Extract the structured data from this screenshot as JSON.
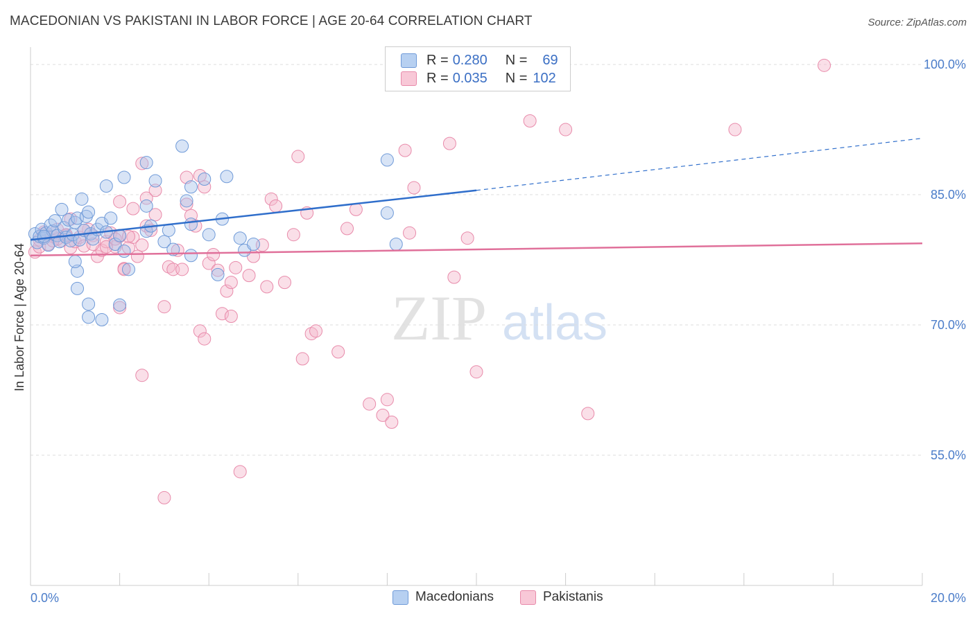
{
  "title": "MACEDONIAN VS PAKISTANI IN LABOR FORCE | AGE 20-64 CORRELATION CHART",
  "source": "Source: ZipAtlas.com",
  "watermark": {
    "zip": "ZIP",
    "atlas": "atlas"
  },
  "colors": {
    "blue_fill": "#a9c4ec",
    "blue_stroke": "#6f9ad8",
    "blue_line": "#2f6ecb",
    "pink_fill": "#f5b8cb",
    "pink_stroke": "#e88aaa",
    "pink_line": "#e0709a",
    "tick_label": "#4a7cc9",
    "grid": "#dddddd"
  },
  "legend": {
    "rows": [
      {
        "r_label": "R =",
        "r_value": "0.280",
        "n_label": "N =",
        "n_value": "69",
        "series": "Macedonians"
      },
      {
        "r_label": "R =",
        "r_value": "0.035",
        "n_label": "N =",
        "n_value": "102",
        "series": "Pakistanis"
      }
    ]
  },
  "bottom_legend": [
    "Macedonians",
    "Pakistanis"
  ],
  "chart_data": {
    "type": "scatter",
    "title": "MACEDONIAN VS PAKISTANI IN LABOR FORCE | AGE 20-64 CORRELATION CHART",
    "xlabel": "",
    "ylabel": "In Labor Force | Age 20-64",
    "xlim": [
      0,
      20
    ],
    "ylim": [
      40,
      102
    ],
    "x_tick_labels": [
      "0.0%",
      "20.0%"
    ],
    "y_ticks": [
      55,
      70,
      85,
      100
    ],
    "y_tick_labels": [
      "55.0%",
      "70.0%",
      "85.0%",
      "100.0%"
    ],
    "grid": true,
    "legend_position": "top-center",
    "series": [
      {
        "name": "Macedonians",
        "color": "#a9c4ec",
        "trend": {
          "x": [
            0,
            10.0
          ],
          "y": [
            79.8,
            85.5
          ],
          "dashed_to": [
            20,
            91.5
          ]
        },
        "points": [
          [
            0.1,
            80.5
          ],
          [
            0.15,
            79.5
          ],
          [
            0.2,
            80.2
          ],
          [
            0.25,
            81.0
          ],
          [
            0.3,
            80.0
          ],
          [
            0.35,
            80.6
          ],
          [
            0.4,
            79.2
          ],
          [
            0.45,
            81.5
          ],
          [
            0.5,
            80.8
          ],
          [
            0.55,
            82.0
          ],
          [
            0.6,
            80.3
          ],
          [
            0.65,
            79.6
          ],
          [
            0.7,
            83.3
          ],
          [
            0.75,
            81.2
          ],
          [
            0.8,
            80.1
          ],
          [
            0.85,
            82.1
          ],
          [
            0.9,
            79.7
          ],
          [
            0.95,
            80.4
          ],
          [
            1.0,
            81.8
          ],
          [
            1.05,
            82.3
          ],
          [
            1.1,
            79.8
          ],
          [
            1.15,
            84.5
          ],
          [
            1.2,
            80.9
          ],
          [
            1.25,
            82.5
          ],
          [
            1.3,
            83.0
          ],
          [
            1.35,
            80.5
          ],
          [
            1.4,
            79.9
          ],
          [
            1.5,
            81.0
          ],
          [
            1.6,
            81.7
          ],
          [
            1.7,
            80.7
          ],
          [
            1.8,
            82.3
          ],
          [
            1.9,
            79.3
          ],
          [
            2.0,
            80.3
          ],
          [
            1.05,
            76.2
          ],
          [
            1.0,
            77.3
          ],
          [
            1.05,
            74.2
          ],
          [
            1.3,
            72.4
          ],
          [
            1.3,
            70.9
          ],
          [
            1.6,
            70.6
          ],
          [
            2.0,
            72.3
          ],
          [
            1.7,
            86.0
          ],
          [
            2.1,
            87.0
          ],
          [
            2.1,
            78.5
          ],
          [
            2.2,
            76.4
          ],
          [
            2.6,
            88.7
          ],
          [
            2.8,
            86.6
          ],
          [
            3.4,
            90.6
          ],
          [
            3.5,
            84.3
          ],
          [
            3.6,
            85.9
          ],
          [
            3.9,
            86.8
          ],
          [
            4.4,
            87.1
          ],
          [
            2.6,
            83.7
          ],
          [
            2.6,
            80.8
          ],
          [
            2.7,
            81.4
          ],
          [
            3.0,
            79.6
          ],
          [
            3.2,
            78.7
          ],
          [
            3.6,
            81.6
          ],
          [
            3.6,
            78.0
          ],
          [
            4.0,
            80.4
          ],
          [
            4.3,
            82.2
          ],
          [
            4.2,
            75.8
          ],
          [
            4.8,
            78.6
          ],
          [
            4.7,
            80.0
          ],
          [
            5.0,
            79.3
          ],
          [
            8.0,
            89.0
          ],
          [
            8.0,
            82.9
          ],
          [
            8.2,
            79.3
          ],
          [
            3.1,
            80.9
          ],
          [
            0.3,
            80.2
          ]
        ]
      },
      {
        "name": "Pakistanis",
        "color": "#f5b8cb",
        "trend": {
          "x": [
            0,
            20
          ],
          "y": [
            78.0,
            79.4
          ]
        },
        "points": [
          [
            0.1,
            78.4
          ],
          [
            0.2,
            79.0
          ],
          [
            0.3,
            80.5
          ],
          [
            0.4,
            79.3
          ],
          [
            0.5,
            80.2
          ],
          [
            0.6,
            81.0
          ],
          [
            0.7,
            79.7
          ],
          [
            0.8,
            80.4
          ],
          [
            0.9,
            78.9
          ],
          [
            1.0,
            79.6
          ],
          [
            1.1,
            80.1
          ],
          [
            1.2,
            79.1
          ],
          [
            1.3,
            81.0
          ],
          [
            1.4,
            80.3
          ],
          [
            1.5,
            77.9
          ],
          [
            1.6,
            78.6
          ],
          [
            1.7,
            79.6
          ],
          [
            1.8,
            80.6
          ],
          [
            1.9,
            79.0
          ],
          [
            2.0,
            80.2
          ],
          [
            2.1,
            76.5
          ],
          [
            2.2,
            78.9
          ],
          [
            2.3,
            80.1
          ],
          [
            2.4,
            77.9
          ],
          [
            2.5,
            79.2
          ],
          [
            2.6,
            81.4
          ],
          [
            2.7,
            80.9
          ],
          [
            2.8,
            82.7
          ],
          [
            2.3,
            83.4
          ],
          [
            2.6,
            84.6
          ],
          [
            2.8,
            85.5
          ],
          [
            2.5,
            88.6
          ],
          [
            2.0,
            84.2
          ],
          [
            3.1,
            76.7
          ],
          [
            3.2,
            76.4
          ],
          [
            3.3,
            78.6
          ],
          [
            3.4,
            76.4
          ],
          [
            3.5,
            83.9
          ],
          [
            3.6,
            82.6
          ],
          [
            3.7,
            81.4
          ],
          [
            3.5,
            87.0
          ],
          [
            3.8,
            87.2
          ],
          [
            3.9,
            85.9
          ],
          [
            4.0,
            77.1
          ],
          [
            4.1,
            78.1
          ],
          [
            4.2,
            76.3
          ],
          [
            4.4,
            73.9
          ],
          [
            4.5,
            74.9
          ],
          [
            4.6,
            76.6
          ],
          [
            4.9,
            75.7
          ],
          [
            5.2,
            79.2
          ],
          [
            5.3,
            74.4
          ],
          [
            5.4,
            84.5
          ],
          [
            5.5,
            83.7
          ],
          [
            5.7,
            74.9
          ],
          [
            5.9,
            80.4
          ],
          [
            6.0,
            89.4
          ],
          [
            6.2,
            82.9
          ],
          [
            6.3,
            69.0
          ],
          [
            6.4,
            69.3
          ],
          [
            6.9,
            66.9
          ],
          [
            6.1,
            66.1
          ],
          [
            7.1,
            81.1
          ],
          [
            7.3,
            83.3
          ],
          [
            7.6,
            60.9
          ],
          [
            7.9,
            59.6
          ],
          [
            8.0,
            61.4
          ],
          [
            8.1,
            58.8
          ],
          [
            8.4,
            90.1
          ],
          [
            8.6,
            85.8
          ],
          [
            8.5,
            80.6
          ],
          [
            9.4,
            90.9
          ],
          [
            9.5,
            75.5
          ],
          [
            9.8,
            80.0
          ],
          [
            10.0,
            64.6
          ],
          [
            11.2,
            93.5
          ],
          [
            12.0,
            92.5
          ],
          [
            12.5,
            59.8
          ],
          [
            15.8,
            92.5
          ],
          [
            17.8,
            99.9
          ],
          [
            3.0,
            72.1
          ],
          [
            2.0,
            72.0
          ],
          [
            2.5,
            64.2
          ],
          [
            3.0,
            50.1
          ],
          [
            4.7,
            53.1
          ],
          [
            3.8,
            69.3
          ],
          [
            3.9,
            68.4
          ],
          [
            4.3,
            71.3
          ],
          [
            4.5,
            71.0
          ],
          [
            5.0,
            77.9
          ],
          [
            2.1,
            76.4
          ],
          [
            1.4,
            79.3
          ],
          [
            0.9,
            82.2
          ],
          [
            0.6,
            79.9
          ],
          [
            1.7,
            79.0
          ],
          [
            1.9,
            79.9
          ],
          [
            1.2,
            80.9
          ],
          [
            0.5,
            79.7
          ],
          [
            0.8,
            80.3
          ],
          [
            2.2,
            80.2
          ],
          [
            0.3,
            80.7
          ],
          [
            0.2,
            79.8
          ]
        ]
      }
    ]
  }
}
